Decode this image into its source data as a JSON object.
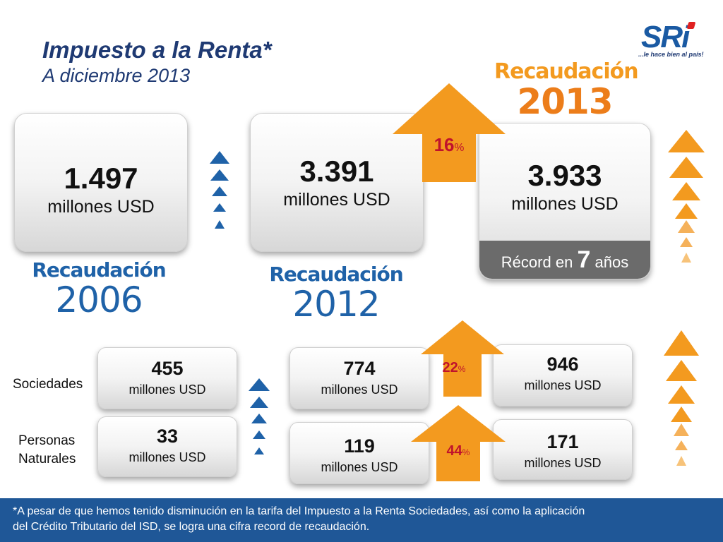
{
  "title": "Impuesto a la Renta*",
  "subtitle": "A diciembre 2013",
  "logo": {
    "text": "SRi",
    "tagline": "...le hace bien al país!"
  },
  "recaudacion_word": "Recaudación",
  "total": {
    "y2006": {
      "value": "1.497",
      "unit": "millones USD",
      "year": "2006"
    },
    "y2012": {
      "value": "3.391",
      "unit": "millones USD",
      "year": "2012"
    },
    "y2013": {
      "value": "3.933",
      "unit": "millones USD",
      "year": "2013",
      "record_prefix": "Récord en",
      "record_number": "7",
      "record_suffix": "años"
    },
    "growth": {
      "value": "16",
      "symbol": "%"
    }
  },
  "rows": {
    "sociedades": {
      "label": "Sociedades",
      "y2006": {
        "value": "455",
        "unit": "millones USD"
      },
      "y2012": {
        "value": "774",
        "unit": "millones USD"
      },
      "y2013": {
        "value": "946",
        "unit": "millones USD"
      },
      "growth": {
        "value": "22",
        "symbol": "%"
      }
    },
    "personas": {
      "label_line1": "Personas",
      "label_line2": "Naturales",
      "y2006": {
        "value": "33",
        "unit": "millones USD"
      },
      "y2012": {
        "value": "119",
        "unit": "millones USD"
      },
      "y2013": {
        "value": "171",
        "unit": "millones USD"
      },
      "growth": {
        "value": "44",
        "symbol": "%"
      }
    }
  },
  "footer": {
    "line1": "*A pesar de que hemos tenido disminución en la tarifa del Impuesto a la Renta Sociedades, así como la aplicación",
    "line2": "del Crédito Tributario del ISD, se logra una cifra record de recaudación."
  },
  "colors": {
    "blue": "#1f62a8",
    "orange": "#f39a1f",
    "dark_orange": "#ec7d1a",
    "red_pct": "#c0122c",
    "footer_bg": "#1f5797"
  }
}
